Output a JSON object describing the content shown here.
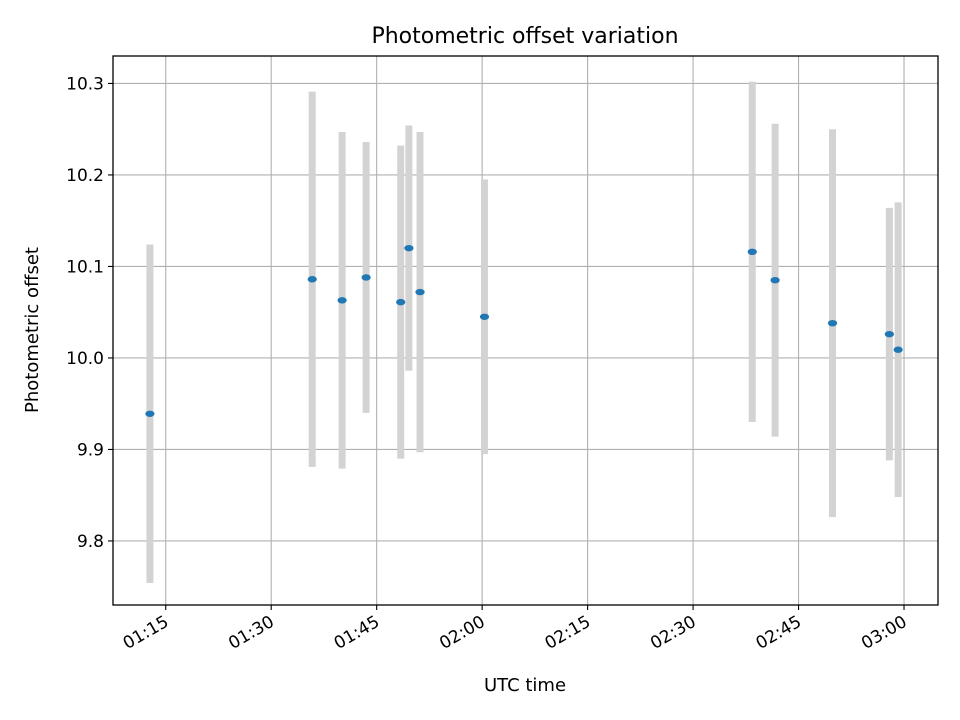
{
  "chart_data": {
    "type": "scatter",
    "title": "Photometric offset variation",
    "xlabel": "UTC time",
    "ylabel": "Photometric offset",
    "x_axis_type": "time",
    "xlim": [
      "01:07:30",
      "03:04:50"
    ],
    "ylim": [
      9.73,
      10.33
    ],
    "x_ticks": [
      "01:15",
      "01:30",
      "01:45",
      "02:00",
      "02:15",
      "02:30",
      "02:45",
      "03:00"
    ],
    "y_ticks": [
      9.8,
      9.9,
      10.0,
      10.1,
      10.2,
      10.3
    ],
    "y_tick_labels": [
      "9.8",
      "9.9",
      "10.0",
      "10.1",
      "10.2",
      "10.3"
    ],
    "grid": true,
    "series": [
      {
        "marker_color": "#1f77b4",
        "errorbar_color": "#d3d3d3",
        "points": [
          {
            "x": "01:12:45",
            "y": 9.939,
            "err": 0.185
          },
          {
            "x": "01:35:50",
            "y": 10.086,
            "err": 0.205
          },
          {
            "x": "01:40:05",
            "y": 10.063,
            "err": 0.184
          },
          {
            "x": "01:43:30",
            "y": 10.088,
            "err": 0.148
          },
          {
            "x": "01:48:25",
            "y": 10.061,
            "err": 0.171
          },
          {
            "x": "01:49:35",
            "y": 10.12,
            "err": 0.134
          },
          {
            "x": "01:51:10",
            "y": 10.072,
            "err": 0.175
          },
          {
            "x": "02:00:20",
            "y": 10.045,
            "err": 0.15
          },
          {
            "x": "02:38:25",
            "y": 10.116,
            "err": 0.186
          },
          {
            "x": "02:41:40",
            "y": 10.085,
            "err": 0.171
          },
          {
            "x": "02:49:50",
            "y": 10.038,
            "err": 0.212
          },
          {
            "x": "02:57:55",
            "y": 10.026,
            "err": 0.138
          },
          {
            "x": "02:59:10",
            "y": 10.009,
            "err": 0.161
          }
        ]
      }
    ]
  }
}
